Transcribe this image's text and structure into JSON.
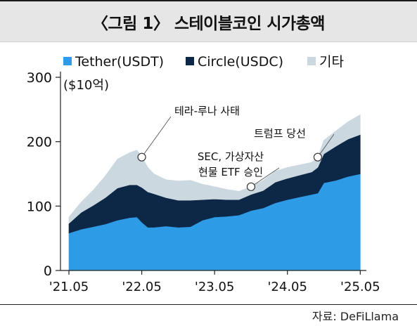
{
  "title": "〈그림 1〉 스테이블코인 시가총액",
  "source": "자료: DeFiLlama",
  "chart_data": {
    "type": "area",
    "stacked": true,
    "title": "〈그림 1〉 스테이블코인 시가총액",
    "ylabel": "($10억)",
    "ylim": [
      0,
      300
    ],
    "yticks": [
      0,
      100,
      200,
      300
    ],
    "xlabel": "",
    "xlim": [
      2021.3,
      2025.5
    ],
    "xticks": [
      {
        "x": 2021.416,
        "label": "'21.05"
      },
      {
        "x": 2022.416,
        "label": "'22.05"
      },
      {
        "x": 2023.416,
        "label": "'23.05"
      },
      {
        "x": 2024.416,
        "label": "'24.05"
      },
      {
        "x": 2025.416,
        "label": "'25.05"
      }
    ],
    "legend": {
      "position": "top"
    },
    "x": [
      2021.416,
      2021.583,
      2021.75,
      2021.916,
      2022.083,
      2022.25,
      2022.35,
      2022.416,
      2022.5,
      2022.583,
      2022.75,
      2022.916,
      2023.083,
      2023.25,
      2023.416,
      2023.583,
      2023.75,
      2023.916,
      2024.083,
      2024.25,
      2024.416,
      2024.583,
      2024.75,
      2024.833,
      2024.916,
      2025.083,
      2025.25,
      2025.416
    ],
    "series": [
      {
        "name": "Tether(USDT)",
        "color": "#2e9be6",
        "values": [
          58,
          64,
          68,
          72,
          78,
          82,
          83,
          75,
          67,
          67,
          69,
          67,
          68,
          78,
          83,
          84,
          86,
          93,
          97,
          105,
          110,
          114,
          118,
          120,
          136,
          140,
          146,
          150
        ]
      },
      {
        "name": "Circle(USDC)",
        "color": "#0d2747",
        "values": [
          15,
          26,
          33,
          41,
          50,
          51,
          50,
          54,
          55,
          52,
          44,
          42,
          41,
          32,
          28,
          26,
          24,
          25,
          27,
          32,
          33,
          34,
          35,
          40,
          45,
          53,
          58,
          61
        ]
      },
      {
        "name": "기타",
        "color": "#ccd8e0",
        "values": [
          10,
          16,
          24,
          34,
          45,
          50,
          54,
          47,
          38,
          31,
          28,
          30,
          31,
          24,
          19,
          16,
          13,
          12,
          16,
          17,
          17,
          16,
          15,
          16,
          21,
          24,
          27,
          31
        ]
      }
    ],
    "annotations": [
      {
        "text": "테라-루나 사태",
        "x": 2022.416,
        "y": 176
      },
      {
        "text": "SEC, 가상자산\n현물 ETF 승인",
        "x": 2023.916,
        "y": 130
      },
      {
        "text": "트럼프 당선",
        "x": 2024.833,
        "y": 176
      }
    ]
  }
}
